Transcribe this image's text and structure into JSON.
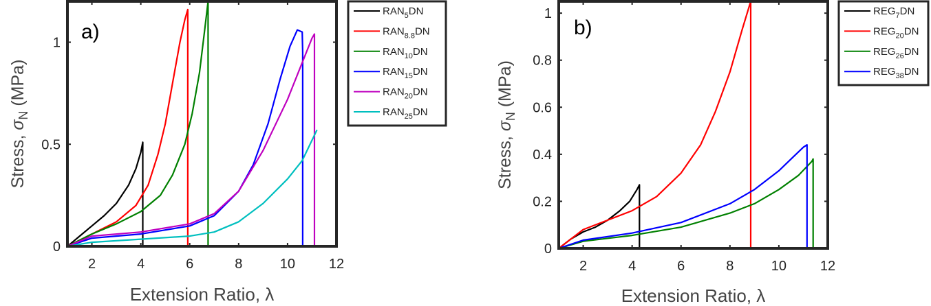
{
  "chart_data": [
    {
      "type": "line",
      "panel_label": "a)",
      "xlabel": "Extension Ratio, λ",
      "ylabel": "Stress, σN (MPa)",
      "ylabel_parts": {
        "main": "Stress, ",
        "sym": "σ",
        "sub": "N",
        "unit": " (MPa)"
      },
      "xlim": [
        1,
        12
      ],
      "ylim": [
        0,
        1.2
      ],
      "xticks": [
        2,
        4,
        6,
        8,
        10,
        12
      ],
      "yticks": [
        0,
        0.5,
        1
      ],
      "ytick_labels": [
        "0",
        "0.5",
        "1"
      ],
      "legend_position": "outside-right",
      "series": [
        {
          "name": "RAN5DN",
          "label_main": "RAN",
          "label_sub": "5",
          "label_tail": "DN",
          "color": "#000000",
          "x": [
            1.0,
            1.5,
            2.0,
            2.5,
            3.0,
            3.5,
            3.8,
            4.0,
            4.08,
            4.08
          ],
          "y": [
            0.0,
            0.05,
            0.1,
            0.15,
            0.21,
            0.3,
            0.38,
            0.46,
            0.51,
            0.0
          ]
        },
        {
          "name": "RAN8.8DN",
          "label_main": "RAN",
          "label_sub": "8.8",
          "label_tail": "DN",
          "color": "#ff0000",
          "x": [
            1.0,
            2.0,
            3.0,
            3.8,
            4.3,
            4.7,
            5.0,
            5.3,
            5.6,
            5.8,
            5.92,
            5.92
          ],
          "y": [
            0.0,
            0.06,
            0.12,
            0.2,
            0.3,
            0.45,
            0.6,
            0.8,
            1.0,
            1.11,
            1.16,
            0.0
          ]
        },
        {
          "name": "RAN10DN",
          "label_main": "RAN",
          "label_sub": "10",
          "label_tail": "DN",
          "color": "#008000",
          "x": [
            1.0,
            2.0,
            3.0,
            4.0,
            4.8,
            5.3,
            5.8,
            6.1,
            6.4,
            6.6,
            6.75,
            6.75
          ],
          "y": [
            0.0,
            0.06,
            0.11,
            0.17,
            0.25,
            0.35,
            0.5,
            0.65,
            0.85,
            1.05,
            1.2,
            0.0
          ]
        },
        {
          "name": "RAN15DN",
          "label_main": "RAN",
          "label_sub": "15",
          "label_tail": "DN",
          "color": "#0000ff",
          "x": [
            1.0,
            2.0,
            4.0,
            6.0,
            7.0,
            8.0,
            8.6,
            9.2,
            9.7,
            10.1,
            10.4,
            10.6,
            10.62,
            10.62
          ],
          "y": [
            0.0,
            0.04,
            0.06,
            0.1,
            0.15,
            0.27,
            0.4,
            0.6,
            0.82,
            0.98,
            1.06,
            1.05,
            0.95,
            0.0
          ]
        },
        {
          "name": "RAN20DN",
          "label_main": "RAN",
          "label_sub": "20",
          "label_tail": "DN",
          "color": "#bf00bf",
          "x": [
            1.0,
            2.0,
            4.0,
            6.0,
            7.0,
            8.0,
            9.0,
            10.0,
            10.6,
            11.0,
            11.1,
            11.1
          ],
          "y": [
            0.0,
            0.05,
            0.07,
            0.11,
            0.16,
            0.27,
            0.47,
            0.72,
            0.9,
            1.02,
            1.04,
            0.0
          ]
        },
        {
          "name": "RAN25DN",
          "label_main": "RAN",
          "label_sub": "25",
          "label_tail": "DN",
          "color": "#00bfbf",
          "x": [
            1.0,
            2.0,
            4.0,
            6.0,
            7.0,
            8.0,
            9.0,
            10.0,
            10.6,
            11.2
          ],
          "y": [
            0.0,
            0.02,
            0.035,
            0.05,
            0.07,
            0.12,
            0.21,
            0.33,
            0.42,
            0.57
          ]
        }
      ]
    },
    {
      "type": "line",
      "panel_label": "b)",
      "xlabel": "Extension Ratio, λ",
      "ylabel": "Stress, σN (MPa)",
      "ylabel_parts": {
        "main": "Stress, ",
        "sym": "σ",
        "sub": "N",
        "unit": " (MPa)"
      },
      "xlim": [
        1,
        12
      ],
      "ylim": [
        0,
        1.05
      ],
      "xticks": [
        2,
        4,
        6,
        8,
        10,
        12
      ],
      "yticks": [
        0,
        0.2,
        0.4,
        0.6,
        0.8,
        1
      ],
      "ytick_labels": [
        "0",
        "0.2",
        "0.4",
        "0.6",
        "0.8",
        "1"
      ],
      "legend_position": "outside-right",
      "series": [
        {
          "name": "REG7DN",
          "label_main": "REG",
          "label_sub": "7",
          "label_tail": "DN",
          "color": "#000000",
          "x": [
            1.0,
            1.5,
            2.0,
            2.5,
            3.0,
            3.5,
            3.9,
            4.2,
            4.3,
            4.3
          ],
          "y": [
            0.0,
            0.04,
            0.07,
            0.09,
            0.12,
            0.16,
            0.2,
            0.25,
            0.27,
            0.0
          ]
        },
        {
          "name": "REG20DN",
          "label_main": "REG",
          "label_sub": "20",
          "label_tail": "DN",
          "color": "#ff0000",
          "x": [
            1.0,
            2.0,
            3.0,
            4.0,
            5.0,
            6.0,
            6.8,
            7.4,
            8.0,
            8.5,
            8.85,
            8.85
          ],
          "y": [
            0.0,
            0.08,
            0.12,
            0.16,
            0.22,
            0.32,
            0.44,
            0.58,
            0.75,
            0.93,
            1.05,
            0.0
          ]
        },
        {
          "name": "REG26DN",
          "label_main": "REG",
          "label_sub": "26",
          "label_tail": "DN",
          "color": "#008000",
          "x": [
            1.0,
            2.0,
            4.0,
            6.0,
            8.0,
            9.0,
            10.0,
            10.8,
            11.35,
            11.4,
            11.4
          ],
          "y": [
            0.0,
            0.03,
            0.055,
            0.09,
            0.15,
            0.19,
            0.25,
            0.31,
            0.37,
            0.38,
            0.0
          ]
        },
        {
          "name": "REG38DN",
          "label_main": "REG",
          "label_sub": "38",
          "label_tail": "DN",
          "color": "#0000ff",
          "x": [
            1.0,
            2.0,
            4.0,
            6.0,
            8.0,
            9.0,
            10.0,
            10.6,
            11.0,
            11.15,
            11.15
          ],
          "y": [
            0.0,
            0.035,
            0.065,
            0.11,
            0.19,
            0.25,
            0.33,
            0.39,
            0.43,
            0.44,
            0.0
          ]
        }
      ]
    }
  ]
}
